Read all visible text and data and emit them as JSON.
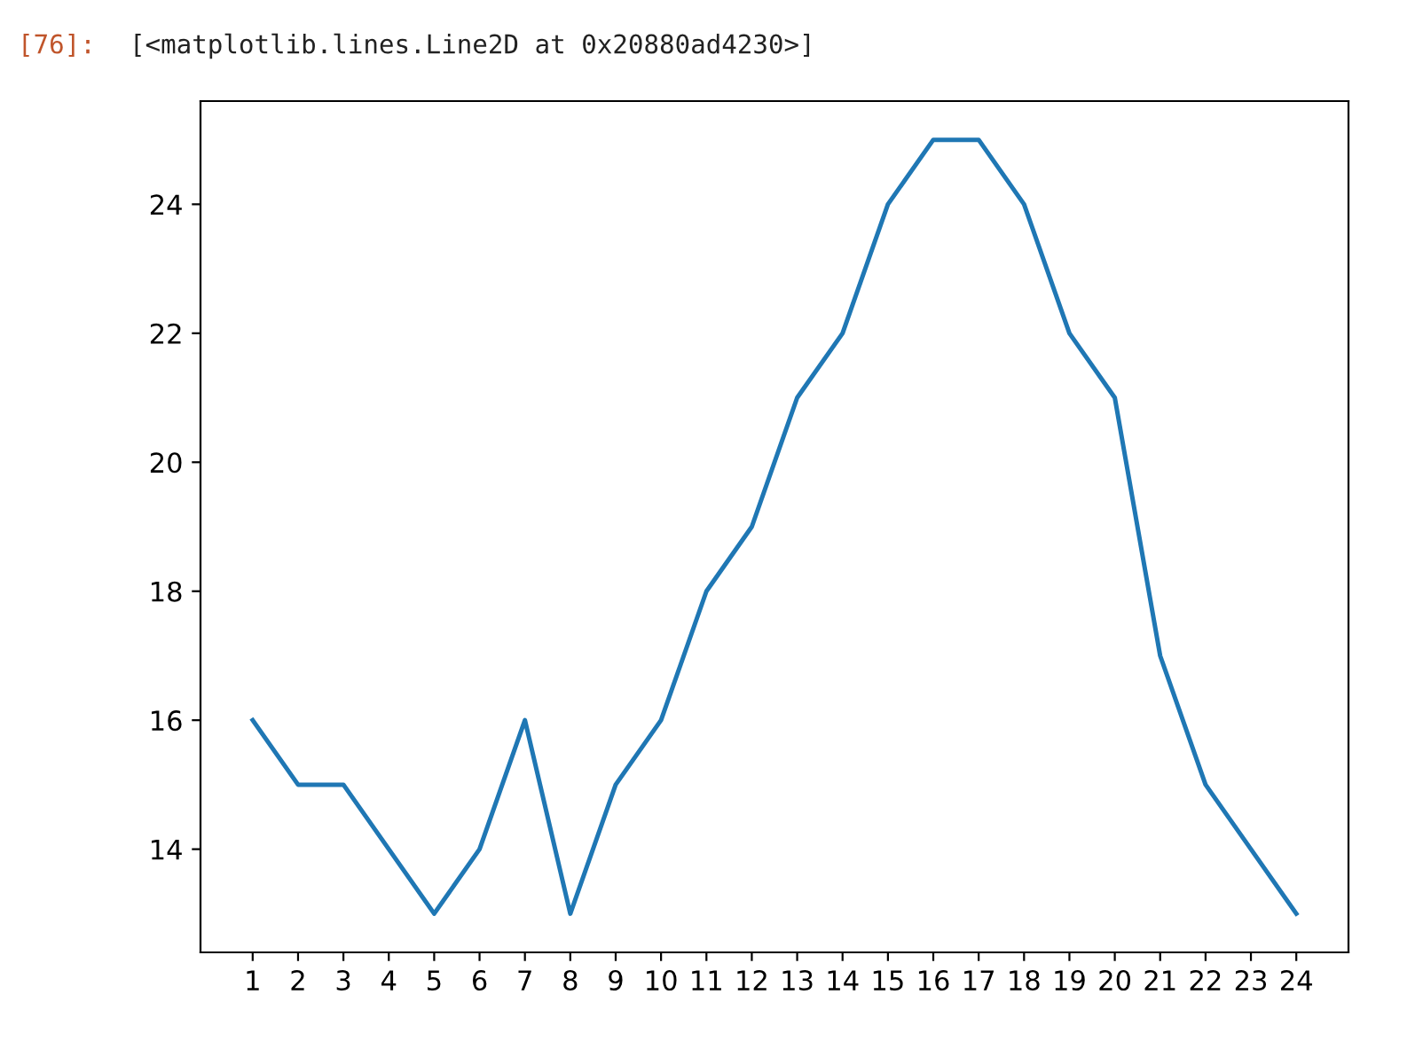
{
  "chart_data": {
    "type": "line",
    "x": [
      1,
      2,
      3,
      4,
      5,
      6,
      7,
      8,
      9,
      10,
      11,
      12,
      13,
      14,
      15,
      16,
      17,
      18,
      19,
      20,
      21,
      22,
      23,
      24
    ],
    "series": [
      {
        "color": "#1f77b4",
        "values": [
          16,
          15,
          15,
          14,
          13,
          14,
          16,
          13,
          15,
          16,
          18,
          19,
          21,
          22,
          24,
          25,
          25,
          24,
          22,
          21,
          17,
          15,
          14,
          13
        ]
      }
    ],
    "xlim": [
      -0.15,
      25.15
    ],
    "xticks": [
      1,
      2,
      3,
      4,
      5,
      6,
      7,
      8,
      9,
      10,
      11,
      12,
      13,
      14,
      15,
      16,
      17,
      18,
      19,
      20,
      21,
      22,
      23,
      24
    ],
    "ylim": [
      12.4,
      25.6
    ],
    "yticks": [
      14,
      16,
      18,
      20,
      22,
      24
    ],
    "grid": false,
    "marker": "none",
    "line_style": "solid",
    "annotations": [
      "[76]:",
      "[<matplotlib.lines.Line2D at 0x20880ad4230>]"
    ]
  }
}
